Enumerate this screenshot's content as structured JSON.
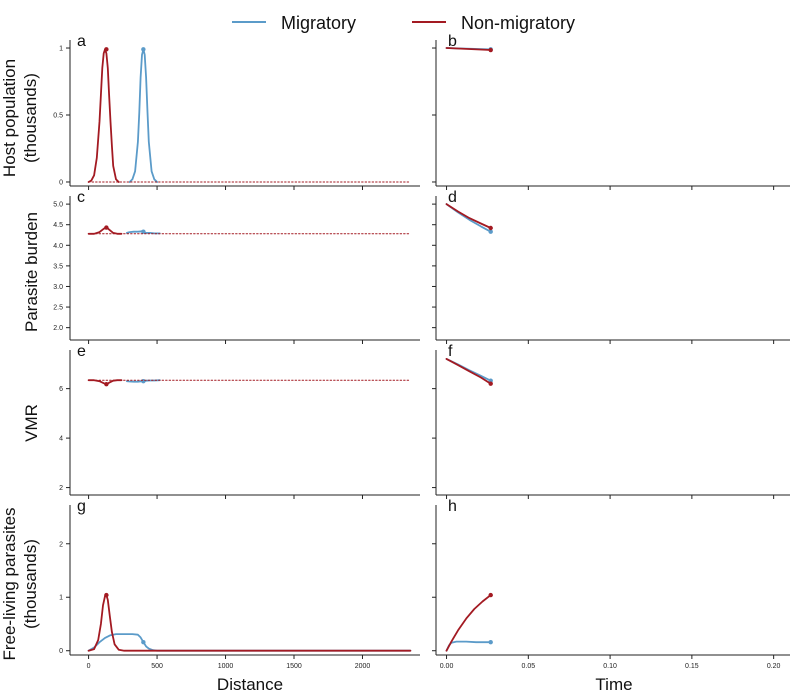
{
  "colors": {
    "migratory": "#5b9bc9",
    "non_migratory": "#a31a22",
    "axis": "#222222"
  },
  "legend": {
    "migratory": "Migratory",
    "non_migratory": "Non-migratory"
  },
  "axis_titles": {
    "host": "Host population\n(thousands)",
    "parasite": "Parasite burden",
    "vmr": "VMR",
    "free": "Free-living parasites\n(thousands)",
    "distance": "Distance",
    "time": "Time"
  },
  "chart_data": [
    {
      "panel": "a",
      "type": "line",
      "x_axis": "distance",
      "row": "host",
      "xlim": [
        -70,
        2420
      ],
      "ylim": [
        -0.03,
        1.03
      ],
      "yticks": [
        "0",
        "0.5",
        "1"
      ],
      "series": [
        {
          "name": "Migratory",
          "x": [
            300,
            320,
            340,
            360,
            370,
            380,
            390,
            400,
            410,
            420,
            430,
            440,
            460,
            480,
            500
          ],
          "y": [
            0.0,
            0.02,
            0.08,
            0.3,
            0.52,
            0.78,
            0.95,
            0.99,
            0.95,
            0.78,
            0.52,
            0.3,
            0.08,
            0.02,
            0.0
          ],
          "marker": {
            "x": 400,
            "y": 0.99
          }
        },
        {
          "name": "Non-migratory",
          "x": [
            0,
            20,
            40,
            60,
            80,
            90,
            100,
            110,
            120,
            130,
            140,
            150,
            160,
            170,
            180,
            200,
            220
          ],
          "y": [
            0.0,
            0.01,
            0.05,
            0.18,
            0.45,
            0.65,
            0.85,
            0.96,
            0.99,
            0.96,
            0.85,
            0.65,
            0.45,
            0.27,
            0.12,
            0.02,
            0.0
          ],
          "marker": {
            "x": 130,
            "y": 0.99
          }
        },
        {
          "name": "Non-migratory",
          "style": "dotted",
          "x": [
            0,
            2350
          ],
          "y": [
            0.0,
            0.0
          ]
        }
      ]
    },
    {
      "panel": "b",
      "type": "line",
      "x_axis": "time",
      "row": "host",
      "xlim": [
        -0.004,
        0.21
      ],
      "ylim": [
        -0.03,
        1.03
      ],
      "series": [
        {
          "name": "Migratory",
          "x": [
            0,
            0.027
          ],
          "y": [
            1.0,
            0.99
          ],
          "marker": {
            "x": 0.027,
            "y": 0.99
          }
        },
        {
          "name": "Non-migratory",
          "x": [
            0,
            0.027
          ],
          "y": [
            1.0,
            0.985
          ],
          "marker": {
            "x": 0.027,
            "y": 0.985
          }
        }
      ]
    },
    {
      "panel": "c",
      "type": "line",
      "x_axis": "distance",
      "row": "parasite",
      "xlim": [
        -70,
        2420
      ],
      "ylim": [
        1.7,
        5.1
      ],
      "yticks": [
        "2.0",
        "2.5",
        "3.0",
        "3.5",
        "4.0",
        "4.5",
        "5.0"
      ],
      "series": [
        {
          "name": "Migratory",
          "x": [
            280,
            300,
            330,
            360,
            390,
            400,
            420,
            450,
            480,
            520
          ],
          "y": [
            4.3,
            4.32,
            4.33,
            4.33,
            4.34,
            4.33,
            4.3,
            4.3,
            4.29,
            4.29
          ],
          "marker": {
            "x": 400,
            "y": 4.33
          }
        },
        {
          "name": "Non-migratory",
          "x": [
            0,
            40,
            80,
            110,
            130,
            150,
            180,
            210,
            240
          ],
          "y": [
            4.28,
            4.28,
            4.32,
            4.4,
            4.44,
            4.38,
            4.3,
            4.28,
            4.28
          ],
          "marker": {
            "x": 130,
            "y": 4.43
          }
        },
        {
          "name": "Non-migratory",
          "style": "dotted",
          "x": [
            0,
            2350
          ],
          "y": [
            4.28,
            4.28
          ]
        }
      ]
    },
    {
      "panel": "d",
      "type": "line",
      "x_axis": "time",
      "row": "parasite",
      "xlim": [
        -0.004,
        0.21
      ],
      "ylim": [
        1.7,
        5.1
      ],
      "series": [
        {
          "name": "Migratory",
          "x": [
            0,
            0.007,
            0.014,
            0.021,
            0.027
          ],
          "y": [
            5.0,
            4.8,
            4.62,
            4.46,
            4.33
          ],
          "marker": {
            "x": 0.027,
            "y": 4.33
          }
        },
        {
          "name": "Non-migratory",
          "x": [
            0,
            0.007,
            0.014,
            0.021,
            0.027
          ],
          "y": [
            5.0,
            4.82,
            4.66,
            4.53,
            4.42
          ],
          "marker": {
            "x": 0.027,
            "y": 4.42
          }
        }
      ]
    },
    {
      "panel": "e",
      "type": "line",
      "x_axis": "distance",
      "row": "vmr",
      "xlim": [
        -70,
        2420
      ],
      "ylim": [
        1.7,
        7.4
      ],
      "yticks": [
        "2",
        "4",
        "6"
      ],
      "series": [
        {
          "name": "Migratory",
          "x": [
            280,
            300,
            330,
            360,
            390,
            400,
            420,
            450,
            480,
            520
          ],
          "y": [
            6.3,
            6.29,
            6.28,
            6.28,
            6.3,
            6.29,
            6.32,
            6.33,
            6.33,
            6.34
          ],
          "marker": {
            "x": 400,
            "y": 6.3
          }
        },
        {
          "name": "Non-migratory",
          "x": [
            0,
            40,
            80,
            110,
            130,
            150,
            180,
            210,
            240
          ],
          "y": [
            6.34,
            6.34,
            6.3,
            6.22,
            6.17,
            6.24,
            6.32,
            6.34,
            6.34
          ],
          "marker": {
            "x": 130,
            "y": 6.18
          }
        },
        {
          "name": "Non-migratory",
          "style": "dotted",
          "x": [
            0,
            2350
          ],
          "y": [
            6.34,
            6.34
          ]
        }
      ]
    },
    {
      "panel": "f",
      "type": "line",
      "x_axis": "time",
      "row": "vmr",
      "xlim": [
        -0.004,
        0.21
      ],
      "ylim": [
        1.7,
        7.4
      ],
      "series": [
        {
          "name": "Migratory",
          "x": [
            0,
            0.007,
            0.014,
            0.021,
            0.027
          ],
          "y": [
            7.2,
            6.98,
            6.74,
            6.52,
            6.32
          ],
          "marker": {
            "x": 0.027,
            "y": 6.32
          }
        },
        {
          "name": "Non-migratory",
          "x": [
            0,
            0.007,
            0.014,
            0.021,
            0.027
          ],
          "y": [
            7.2,
            6.95,
            6.7,
            6.45,
            6.2
          ],
          "marker": {
            "x": 0.027,
            "y": 6.2
          }
        }
      ]
    },
    {
      "panel": "g",
      "type": "line",
      "x_axis": "distance",
      "row": "free",
      "xticks": [
        "0",
        "500",
        "1000",
        "1500",
        "2000"
      ],
      "xlim": [
        -70,
        2420
      ],
      "ylim": [
        -0.08,
        2.65
      ],
      "yticks": [
        "0",
        "1",
        "2"
      ],
      "series": [
        {
          "name": "Migratory",
          "x": [
            0,
            40,
            80,
            120,
            160,
            200,
            240,
            280,
            320,
            360,
            380,
            400,
            420,
            440,
            470,
            500,
            2350
          ],
          "y": [
            0.0,
            0.06,
            0.16,
            0.24,
            0.29,
            0.31,
            0.31,
            0.31,
            0.31,
            0.3,
            0.25,
            0.16,
            0.08,
            0.04,
            0.01,
            0.0,
            0.0
          ],
          "marker": {
            "x": 400,
            "y": 0.16
          }
        },
        {
          "name": "Non-migratory",
          "x": [
            0,
            40,
            70,
            90,
            105,
            120,
            130,
            140,
            155,
            170,
            190,
            220,
            260,
            300,
            2350
          ],
          "y": [
            0.0,
            0.03,
            0.2,
            0.5,
            0.85,
            1.02,
            1.04,
            0.95,
            0.65,
            0.35,
            0.12,
            0.02,
            0.0,
            0.0,
            0.0
          ],
          "marker": {
            "x": 130,
            "y": 1.04
          }
        }
      ]
    },
    {
      "panel": "h",
      "type": "line",
      "x_axis": "time",
      "row": "free",
      "xticks": [
        "0.00",
        "0.05",
        "0.10",
        "0.15",
        "0.20"
      ],
      "xlim": [
        -0.004,
        0.21
      ],
      "ylim": [
        -0.08,
        2.65
      ],
      "series": [
        {
          "name": "Migratory",
          "x": [
            0,
            0.0015,
            0.003,
            0.006,
            0.012,
            0.018,
            0.027
          ],
          "y": [
            0.0,
            0.1,
            0.15,
            0.17,
            0.17,
            0.16,
            0.16
          ],
          "marker": {
            "x": 0.027,
            "y": 0.16
          }
        },
        {
          "name": "Non-migratory",
          "x": [
            0,
            0.003,
            0.007,
            0.012,
            0.017,
            0.022,
            0.027
          ],
          "y": [
            0.0,
            0.17,
            0.38,
            0.6,
            0.78,
            0.92,
            1.04
          ],
          "marker": {
            "x": 0.027,
            "y": 1.04
          }
        }
      ]
    }
  ]
}
